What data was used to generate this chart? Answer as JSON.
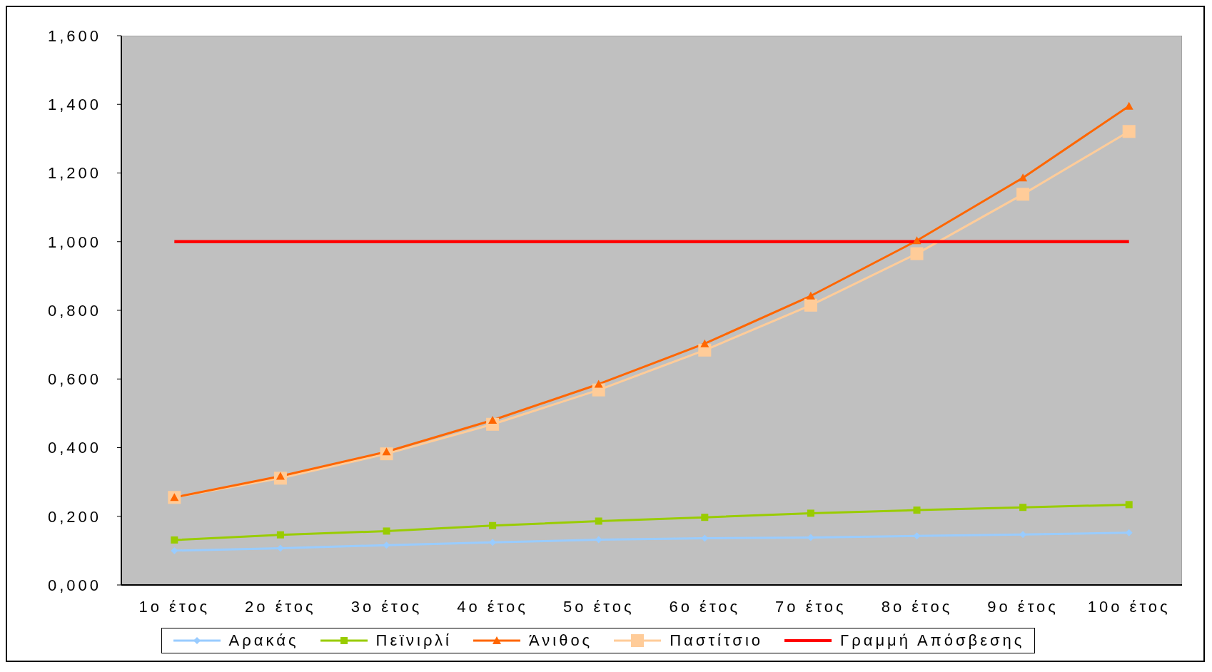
{
  "chart_data": {
    "type": "line",
    "categories": [
      "1ο έτος",
      "2ο έτος",
      "3ο έτος",
      "4ο έτος",
      "5ο έτος",
      "6ο έτος",
      "7ο έτος",
      "8ο έτος",
      "9ο έτος",
      "10ο έτος"
    ],
    "series": [
      {
        "name": "Αρακάς",
        "color": "#99ccff",
        "marker": "diamond",
        "values": [
          0.1,
          0.107,
          0.116,
          0.124,
          0.132,
          0.136,
          0.138,
          0.143,
          0.147,
          0.152
        ]
      },
      {
        "name": "Πεϊνιρλί",
        "color": "#99cc00",
        "marker": "square",
        "values": [
          0.131,
          0.146,
          0.157,
          0.173,
          0.186,
          0.197,
          0.209,
          0.218,
          0.226,
          0.234
        ]
      },
      {
        "name": "Άνιθος",
        "color": "#ff6600",
        "marker": "triangle",
        "values": [
          0.255,
          0.317,
          0.388,
          0.48,
          0.585,
          0.703,
          0.842,
          1.003,
          1.186,
          1.395
        ]
      },
      {
        "name": "Παστίτσιο",
        "color": "#ffcc99",
        "marker": "square",
        "values": [
          0.255,
          0.311,
          0.382,
          0.468,
          0.568,
          0.684,
          0.815,
          0.965,
          1.138,
          1.321
        ]
      },
      {
        "name": "Γραμμή Απόσβεσης",
        "color": "#ff0000",
        "marker": "none",
        "values": [
          1.0,
          1.0,
          1.0,
          1.0,
          1.0,
          1.0,
          1.0,
          1.0,
          1.0,
          1.0
        ]
      }
    ],
    "ylim": [
      0,
      1.6
    ],
    "yticks": [
      {
        "value": 0,
        "label": "0,000"
      },
      {
        "value": 0.2,
        "label": "0,200"
      },
      {
        "value": 0.4,
        "label": "0,400"
      },
      {
        "value": 0.6,
        "label": "0,600"
      },
      {
        "value": 0.8,
        "label": "0,800"
      },
      {
        "value": 1.0,
        "label": "1,000"
      },
      {
        "value": 1.2,
        "label": "1,200"
      },
      {
        "value": 1.4,
        "label": "1,400"
      },
      {
        "value": 1.6,
        "label": "1,600"
      }
    ],
    "grid": false,
    "legend": "bottom"
  }
}
